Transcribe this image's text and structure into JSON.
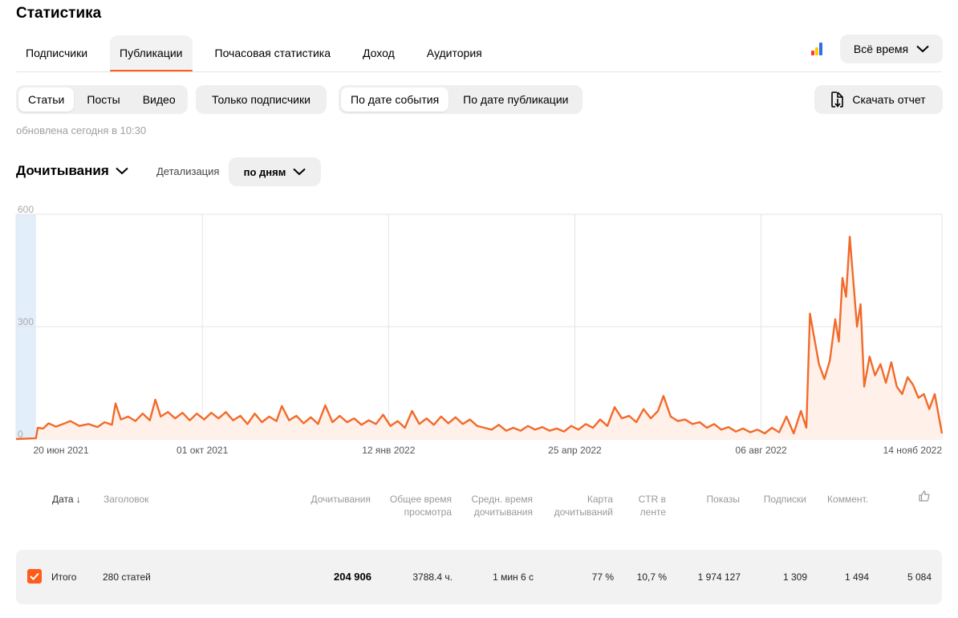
{
  "page": {
    "title": "Статистика"
  },
  "top_tabs": [
    {
      "label": "Подписчики",
      "active": false
    },
    {
      "label": "Публикации",
      "active": true
    },
    {
      "label": "Почасовая статистика",
      "active": false
    },
    {
      "label": "Доход",
      "active": false
    },
    {
      "label": "Аудитория",
      "active": false
    }
  ],
  "period": {
    "label": "Всё время"
  },
  "filters": {
    "content_type": [
      "Статьи",
      "Посты",
      "Видео"
    ],
    "subscribers_only": "Только подписчики",
    "date_mode": [
      "По дате события",
      "По дате публикации"
    ]
  },
  "download": {
    "label": "Скачать отчет"
  },
  "updated": "обновлена сегодня в 10:30",
  "metric": {
    "label": "Дочитывания"
  },
  "detail": {
    "label": "Детализация",
    "value": "по дням"
  },
  "colors": {
    "accent": "#ff5c1a",
    "line": "#f26a2a",
    "fill": "#fff1ea",
    "highlight": "#e3eefb"
  },
  "chart_data": {
    "type": "area",
    "series": [
      {
        "name": "",
        "color": "#f26a2a"
      }
    ],
    "x_start": "2021-06-20",
    "x_end": "2022-11-14",
    "highlight": [
      "2021-06-20",
      "2021-07-01"
    ],
    "ylim": [
      0,
      600
    ],
    "yticks": [
      "600",
      "300",
      "0"
    ],
    "xticks": [
      {
        "label": "20 июн 2021",
        "date": "2021-06-20"
      },
      {
        "label": "01 окт 2021",
        "date": "2021-10-01"
      },
      {
        "label": "12 янв 2022",
        "date": "2022-01-12"
      },
      {
        "label": "25 апр 2022",
        "date": "2022-04-25"
      },
      {
        "label": "06 авг 2022",
        "date": "2022-08-06"
      },
      {
        "label": "14 нояб 2022",
        "date": "2022-11-14"
      }
    ],
    "points": [
      [
        "2021-06-20",
        0
      ],
      [
        "2021-07-01",
        2
      ],
      [
        "2021-07-02",
        30
      ],
      [
        "2021-07-05",
        28
      ],
      [
        "2021-07-08",
        42
      ],
      [
        "2021-07-12",
        33
      ],
      [
        "2021-07-16",
        40
      ],
      [
        "2021-07-20",
        48
      ],
      [
        "2021-07-25",
        35
      ],
      [
        "2021-07-30",
        40
      ],
      [
        "2021-08-04",
        32
      ],
      [
        "2021-08-08",
        45
      ],
      [
        "2021-08-12",
        38
      ],
      [
        "2021-08-14",
        95
      ],
      [
        "2021-08-17",
        52
      ],
      [
        "2021-08-21",
        60
      ],
      [
        "2021-08-25",
        48
      ],
      [
        "2021-08-29",
        68
      ],
      [
        "2021-09-02",
        50
      ],
      [
        "2021-09-05",
        105
      ],
      [
        "2021-09-08",
        60
      ],
      [
        "2021-09-12",
        72
      ],
      [
        "2021-09-16",
        55
      ],
      [
        "2021-09-20",
        70
      ],
      [
        "2021-09-24",
        50
      ],
      [
        "2021-09-28",
        68
      ],
      [
        "2021-10-02",
        52
      ],
      [
        "2021-10-06",
        70
      ],
      [
        "2021-10-10",
        55
      ],
      [
        "2021-10-14",
        72
      ],
      [
        "2021-10-18",
        50
      ],
      [
        "2021-10-22",
        62
      ],
      [
        "2021-10-26",
        40
      ],
      [
        "2021-10-30",
        68
      ],
      [
        "2021-11-03",
        45
      ],
      [
        "2021-11-07",
        60
      ],
      [
        "2021-11-11",
        48
      ],
      [
        "2021-11-14",
        88
      ],
      [
        "2021-11-18",
        50
      ],
      [
        "2021-11-22",
        62
      ],
      [
        "2021-11-26",
        42
      ],
      [
        "2021-11-30",
        58
      ],
      [
        "2021-12-04",
        40
      ],
      [
        "2021-12-08",
        90
      ],
      [
        "2021-12-12",
        45
      ],
      [
        "2021-12-16",
        62
      ],
      [
        "2021-12-20",
        45
      ],
      [
        "2021-12-24",
        55
      ],
      [
        "2021-12-28",
        38
      ],
      [
        "2022-01-01",
        50
      ],
      [
        "2022-01-05",
        40
      ],
      [
        "2022-01-09",
        65
      ],
      [
        "2022-01-13",
        35
      ],
      [
        "2022-01-17",
        48
      ],
      [
        "2022-01-21",
        30
      ],
      [
        "2022-01-25",
        75
      ],
      [
        "2022-01-29",
        40
      ],
      [
        "2022-02-02",
        55
      ],
      [
        "2022-02-06",
        38
      ],
      [
        "2022-02-10",
        60
      ],
      [
        "2022-02-14",
        42
      ],
      [
        "2022-02-18",
        58
      ],
      [
        "2022-02-22",
        40
      ],
      [
        "2022-02-26",
        52
      ],
      [
        "2022-03-02",
        35
      ],
      [
        "2022-03-06",
        30
      ],
      [
        "2022-03-10",
        25
      ],
      [
        "2022-03-14",
        38
      ],
      [
        "2022-03-18",
        22
      ],
      [
        "2022-03-22",
        30
      ],
      [
        "2022-03-26",
        22
      ],
      [
        "2022-03-30",
        35
      ],
      [
        "2022-04-03",
        25
      ],
      [
        "2022-04-07",
        32
      ],
      [
        "2022-04-11",
        22
      ],
      [
        "2022-04-15",
        28
      ],
      [
        "2022-04-19",
        20
      ],
      [
        "2022-04-23",
        35
      ],
      [
        "2022-04-27",
        25
      ],
      [
        "2022-05-01",
        40
      ],
      [
        "2022-05-05",
        30
      ],
      [
        "2022-05-09",
        52
      ],
      [
        "2022-05-13",
        35
      ],
      [
        "2022-05-17",
        85
      ],
      [
        "2022-05-21",
        55
      ],
      [
        "2022-05-25",
        62
      ],
      [
        "2022-05-29",
        45
      ],
      [
        "2022-06-02",
        80
      ],
      [
        "2022-06-06",
        55
      ],
      [
        "2022-06-10",
        75
      ],
      [
        "2022-06-13",
        115
      ],
      [
        "2022-06-17",
        60
      ],
      [
        "2022-06-21",
        48
      ],
      [
        "2022-06-25",
        52
      ],
      [
        "2022-06-29",
        40
      ],
      [
        "2022-07-03",
        45
      ],
      [
        "2022-07-07",
        30
      ],
      [
        "2022-07-11",
        40
      ],
      [
        "2022-07-15",
        25
      ],
      [
        "2022-07-19",
        32
      ],
      [
        "2022-07-23",
        20
      ],
      [
        "2022-07-27",
        28
      ],
      [
        "2022-07-31",
        18
      ],
      [
        "2022-08-04",
        25
      ],
      [
        "2022-08-08",
        15
      ],
      [
        "2022-08-12",
        30
      ],
      [
        "2022-08-16",
        18
      ],
      [
        "2022-08-20",
        60
      ],
      [
        "2022-08-24",
        15
      ],
      [
        "2022-08-28",
        75
      ],
      [
        "2022-08-31",
        30
      ],
      [
        "2022-09-02",
        335
      ],
      [
        "2022-09-04",
        280
      ],
      [
        "2022-09-07",
        200
      ],
      [
        "2022-09-10",
        160
      ],
      [
        "2022-09-13",
        210
      ],
      [
        "2022-09-16",
        320
      ],
      [
        "2022-09-18",
        260
      ],
      [
        "2022-09-20",
        430
      ],
      [
        "2022-09-22",
        380
      ],
      [
        "2022-09-24",
        540
      ],
      [
        "2022-09-26",
        420
      ],
      [
        "2022-09-28",
        300
      ],
      [
        "2022-09-30",
        360
      ],
      [
        "2022-10-02",
        140
      ],
      [
        "2022-10-05",
        220
      ],
      [
        "2022-10-08",
        170
      ],
      [
        "2022-10-11",
        200
      ],
      [
        "2022-10-14",
        150
      ],
      [
        "2022-10-17",
        205
      ],
      [
        "2022-10-20",
        140
      ],
      [
        "2022-10-23",
        120
      ],
      [
        "2022-10-26",
        165
      ],
      [
        "2022-10-29",
        145
      ],
      [
        "2022-11-01",
        110
      ],
      [
        "2022-11-04",
        120
      ],
      [
        "2022-11-07",
        80
      ],
      [
        "2022-11-10",
        120
      ],
      [
        "2022-11-14",
        15
      ]
    ]
  },
  "table": {
    "columns": [
      {
        "key": "date",
        "label": "Дата",
        "sort": "↓"
      },
      {
        "key": "title",
        "label": "Заголовок"
      },
      {
        "key": "reads",
        "label": "Дочитывания"
      },
      {
        "key": "total_time",
        "label": "Общее время просмотра"
      },
      {
        "key": "avg_time",
        "label": "Средн. время дочитывания"
      },
      {
        "key": "map",
        "label": "Карта дочитываний"
      },
      {
        "key": "ctr",
        "label": "CTR в ленте"
      },
      {
        "key": "shows",
        "label": "Показы"
      },
      {
        "key": "subs",
        "label": "Подписки"
      },
      {
        "key": "comments",
        "label": "Коммент."
      },
      {
        "key": "likes",
        "label": ""
      }
    ],
    "total": {
      "label": "Итого",
      "title": "280 статей",
      "reads": "204 906",
      "total_time": "3788.4 ч.",
      "avg_time": "1 мин 6 с",
      "map": "77 %",
      "ctr": "10,7 %",
      "shows": "1 974 127",
      "subs": "1 309",
      "comments": "1 494",
      "likes": "5 084"
    }
  }
}
